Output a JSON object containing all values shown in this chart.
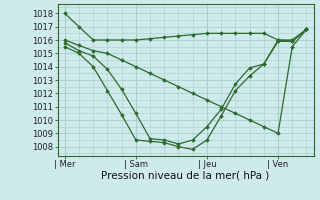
{
  "background_color": "#ceeaea",
  "grid_color": "#aacfcf",
  "line_color": "#2d6a2d",
  "marker_color": "#2d6a2d",
  "ylabel_ticks": [
    1008,
    1009,
    1010,
    1011,
    1012,
    1013,
    1014,
    1015,
    1016,
    1017,
    1018
  ],
  "ylim": [
    1007.3,
    1018.7
  ],
  "xlabel": "Pression niveau de la mer( hPa )",
  "day_labels": [
    "| Mer",
    "| Sam",
    "| Jeu",
    "| Ven"
  ],
  "day_positions": [
    0,
    5,
    10,
    15
  ],
  "total_points": 18,
  "series": [
    {
      "x": [
        0,
        1,
        2,
        3,
        4,
        5,
        6,
        7,
        8,
        9,
        10,
        11,
        12,
        13,
        14,
        15,
        16,
        17
      ],
      "y": [
        1018,
        1017,
        1016,
        1016,
        1016,
        1016,
        1016.1,
        1016.2,
        1016.3,
        1016.4,
        1016.5,
        1016.5,
        1016.5,
        1016.5,
        1016.5,
        1016,
        1016,
        1016.8
      ]
    },
    {
      "x": [
        0,
        1,
        2,
        3,
        4,
        5,
        6,
        7,
        8,
        9,
        10,
        11,
        12,
        13,
        14,
        15,
        16,
        17
      ],
      "y": [
        1016,
        1015.6,
        1015.2,
        1015.0,
        1014.5,
        1014.0,
        1013.5,
        1013.0,
        1012.5,
        1012.0,
        1011.5,
        1011.0,
        1010.5,
        1010.0,
        1009.5,
        1009.0,
        1015.5,
        1016.8
      ]
    },
    {
      "x": [
        0,
        1,
        2,
        3,
        4,
        5,
        6,
        7,
        8,
        9,
        10,
        11,
        12,
        13,
        14,
        15,
        16,
        17
      ],
      "y": [
        1015.8,
        1015.2,
        1014.8,
        1013.8,
        1012.3,
        1010.5,
        1008.6,
        1008.5,
        1008.2,
        1008.5,
        1009.5,
        1010.8,
        1012.7,
        1013.9,
        1014.2,
        1015.9,
        1015.9,
        1016.8
      ]
    },
    {
      "x": [
        0,
        1,
        2,
        3,
        4,
        5,
        6,
        7,
        8,
        9,
        10,
        11,
        12,
        13,
        14,
        15,
        16,
        17
      ],
      "y": [
        1015.5,
        1015.0,
        1014.0,
        1012.2,
        1010.4,
        1008.5,
        1008.4,
        1008.3,
        1008.0,
        1007.8,
        1008.5,
        1010.3,
        1012.2,
        1013.3,
        1014.2,
        1016.0,
        1015.9,
        1016.8
      ]
    }
  ],
  "xlim": [
    -0.5,
    17.5
  ],
  "tick_fontsize": 6.0,
  "label_fontsize": 7.5
}
